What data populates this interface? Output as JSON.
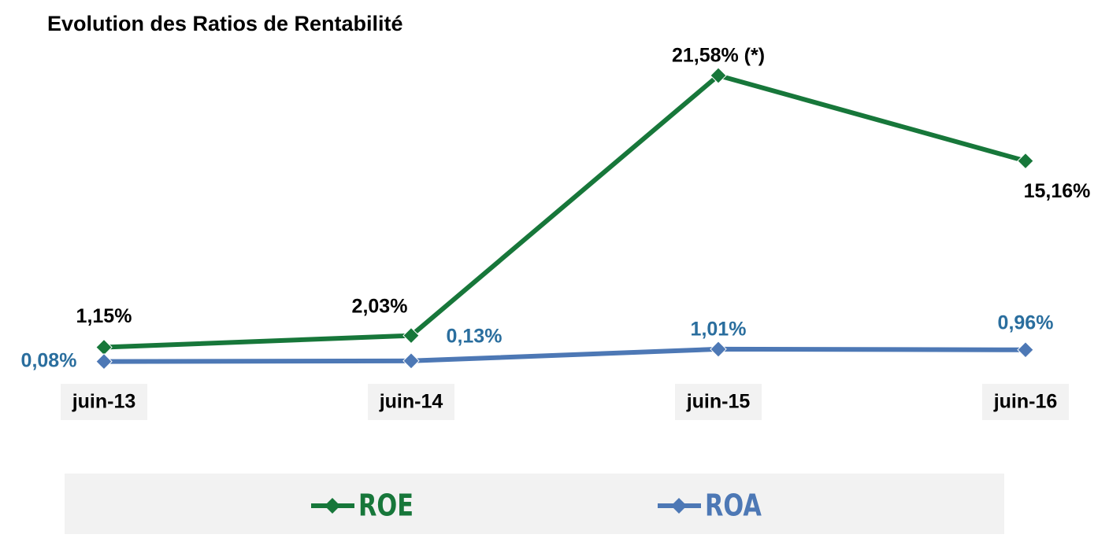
{
  "chart_data": {
    "type": "line",
    "title": "Evolution des  Ratios de Rentabilité",
    "categories": [
      "juin-13",
      "juin-14",
      "juin-15",
      "juin-16"
    ],
    "series": [
      {
        "name": "ROE",
        "color": "#17773a",
        "values": [
          1.15,
          2.03,
          21.58,
          15.16
        ],
        "value_labels": [
          "1,15%",
          "2,03%",
          "21,58% (*)",
          "15,16%"
        ],
        "label_color": "#000000"
      },
      {
        "name": "ROA",
        "color": "#4d78b5",
        "values": [
          0.08,
          0.13,
          1.01,
          0.96
        ],
        "value_labels": [
          "0,08%",
          "0,13%",
          "1,01%",
          "0,96%"
        ],
        "label_color": "#2a6e9e"
      }
    ],
    "legend": "bottom"
  }
}
